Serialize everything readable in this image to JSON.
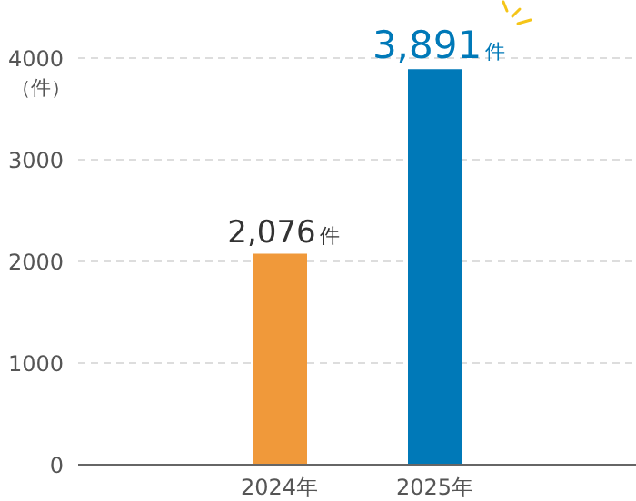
{
  "chart_data": {
    "type": "bar",
    "ylabel": "（件）",
    "categories": [
      "2024年",
      "2025年"
    ],
    "values": [
      2076,
      3891
    ],
    "colors": [
      "#f0993a",
      "#0079b8"
    ],
    "value_labels": [
      "2,076件",
      "3,891件"
    ],
    "ylim": [
      0,
      4000
    ],
    "yticks": [
      0,
      1000,
      2000,
      3000,
      4000
    ],
    "grid": "y",
    "legend": false
  }
}
